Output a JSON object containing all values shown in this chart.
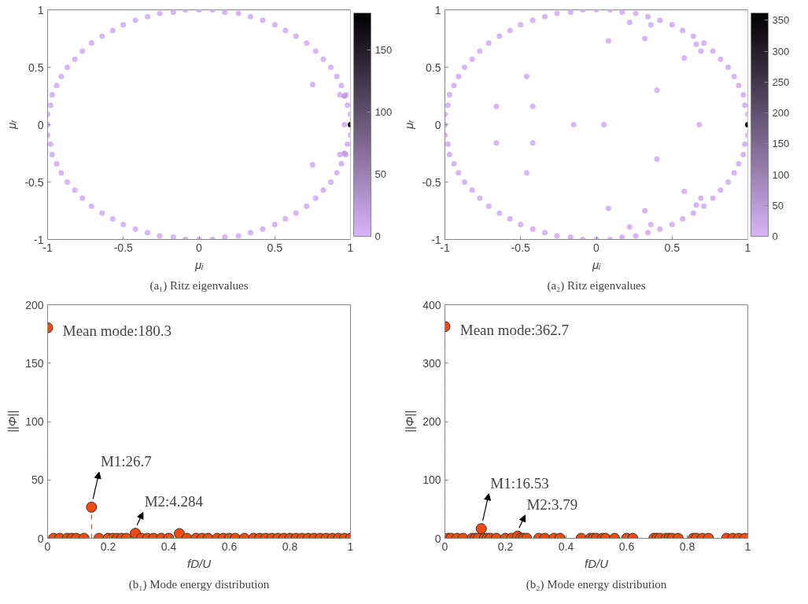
{
  "chart_data": [
    {
      "type": "scatter",
      "title": "(a₁) Ritz eigenvalues",
      "xlabel": "μᵢ",
      "ylabel": "μᵣ",
      "xlim": [
        -1,
        1
      ],
      "ylim": [
        -1,
        1
      ],
      "xticks": [
        -1,
        -0.5,
        0,
        0.5,
        1
      ],
      "yticks": [
        -1,
        -0.5,
        0,
        0.5,
        1
      ],
      "marker": "circle",
      "clim": [
        0,
        180
      ],
      "cticks": [
        0,
        50,
        100,
        150
      ],
      "x": [
        1.0,
        0.98,
        0.97,
        0.94,
        0.91,
        0.87,
        0.82,
        0.77,
        0.71,
        0.64,
        0.57,
        0.5,
        0.42,
        0.34,
        0.26,
        0.17,
        0.09,
        0,
        -0.09,
        -0.17,
        -0.26,
        -0.34,
        -0.42,
        -0.5,
        -0.57,
        -0.64,
        -0.71,
        -0.77,
        -0.82,
        -0.87,
        -0.91,
        -0.94,
        -0.97,
        -0.98,
        -1.0,
        -1,
        -1.0,
        -0.98,
        -0.97,
        -0.94,
        -0.91,
        -0.87,
        -0.82,
        -0.77,
        -0.71,
        -0.64,
        -0.57,
        -0.5,
        -0.42,
        -0.34,
        -0.26,
        -0.17,
        -0.09,
        0,
        0.09,
        0.17,
        0.26,
        0.34,
        0.42,
        0.5,
        0.57,
        0.64,
        0.71,
        0.77,
        0.82,
        0.87,
        0.91,
        0.94,
        0.97,
        0.98,
        1.0,
        0.75,
        0.75,
        0.93,
        0.93,
        0.96,
        0.96,
        0.96,
        1
      ],
      "values": [
        0.09,
        0.17,
        0.26,
        0.34,
        0.42,
        0.5,
        0.57,
        0.64,
        0.71,
        0.77,
        0.82,
        0.87,
        0.91,
        0.94,
        0.97,
        0.98,
        1.0,
        1,
        1.0,
        0.98,
        0.97,
        0.94,
        0.91,
        0.87,
        0.82,
        0.77,
        0.71,
        0.64,
        0.57,
        0.5,
        0.42,
        0.34,
        0.26,
        0.17,
        0.09,
        0,
        -0.09,
        -0.17,
        -0.26,
        -0.34,
        -0.42,
        -0.5,
        -0.57,
        -0.64,
        -0.71,
        -0.77,
        -0.82,
        -0.87,
        -0.91,
        -0.94,
        -0.97,
        -0.98,
        -1.0,
        -1,
        -1.0,
        -0.98,
        -0.97,
        -0.94,
        -0.91,
        -0.87,
        -0.82,
        -0.77,
        -0.71,
        -0.64,
        -0.57,
        -0.5,
        -0.42,
        -0.34,
        -0.26,
        -0.17,
        -0.09,
        0.35,
        -0.35,
        0.26,
        -0.26,
        0.25,
        -0.25,
        0,
        0
      ],
      "cvalues": [
        0,
        0,
        0,
        0,
        0,
        0,
        0,
        0,
        0,
        0,
        0,
        0,
        0,
        0,
        0,
        0,
        0,
        0,
        0,
        0,
        0,
        0,
        0,
        0,
        0,
        0,
        0,
        0,
        0,
        0,
        0,
        0,
        0,
        0,
        0,
        0,
        0,
        0,
        0,
        0,
        0,
        0,
        0,
        0,
        0,
        0,
        0,
        0,
        0,
        0,
        0,
        0,
        0,
        0,
        0,
        0,
        0,
        0,
        0,
        0,
        0,
        0,
        0,
        0,
        0,
        0,
        0,
        0,
        0,
        0,
        0,
        0,
        0,
        0,
        0,
        20,
        20,
        0,
        180
      ]
    },
    {
      "type": "scatter",
      "title": "(a₂) Ritz eigenvalues",
      "xlabel": "μᵢ",
      "ylabel": "μᵣ",
      "xlim": [
        -1,
        1
      ],
      "ylim": [
        -1,
        1
      ],
      "xticks": [
        -1,
        -0.5,
        0,
        0.5,
        1
      ],
      "yticks": [
        -1,
        -0.5,
        0,
        0.5,
        1
      ],
      "marker": "circle",
      "clim": [
        0,
        362
      ],
      "cticks": [
        0,
        50,
        100,
        150,
        200,
        250,
        300,
        350
      ],
      "x": [
        1.0,
        0.98,
        0.97,
        0.94,
        0.91,
        0.87,
        0.82,
        0.77,
        0.71,
        0.64,
        0.57,
        0.5,
        0.42,
        0.34,
        0.26,
        0.17,
        0.09,
        0,
        -0.09,
        -0.17,
        -0.26,
        -0.34,
        -0.42,
        -0.5,
        -0.57,
        -0.64,
        -0.71,
        -0.77,
        -0.82,
        -0.87,
        -0.91,
        -0.94,
        -0.97,
        -0.98,
        -1.0,
        -1,
        -1.0,
        -0.98,
        -0.97,
        -0.94,
        -0.91,
        -0.87,
        -0.82,
        -0.77,
        -0.71,
        -0.64,
        -0.57,
        -0.5,
        -0.42,
        -0.34,
        -0.26,
        -0.17,
        -0.09,
        0,
        0.09,
        0.17,
        0.26,
        0.34,
        0.42,
        0.5,
        0.57,
        0.64,
        0.71,
        0.77,
        0.82,
        0.87,
        0.91,
        0.94,
        0.97,
        0.98,
        1.0,
        -0.46,
        -0.46,
        -0.66,
        -0.66,
        -0.42,
        -0.42,
        -0.15,
        0.05,
        0.08,
        0.08,
        0.32,
        0.32,
        0.22,
        0.22,
        0.36,
        0.36,
        0.4,
        0.4,
        0.58,
        0.58,
        0.66,
        0.66,
        0.69,
        0.69,
        0.68,
        1
      ],
      "values": [
        0.09,
        0.17,
        0.26,
        0.34,
        0.42,
        0.5,
        0.57,
        0.64,
        0.71,
        0.77,
        0.82,
        0.87,
        0.91,
        0.94,
        0.97,
        0.98,
        1.0,
        1,
        1.0,
        0.98,
        0.97,
        0.94,
        0.91,
        0.87,
        0.82,
        0.77,
        0.71,
        0.64,
        0.57,
        0.5,
        0.42,
        0.34,
        0.26,
        0.17,
        0.09,
        0,
        -0.09,
        -0.17,
        -0.26,
        -0.34,
        -0.42,
        -0.5,
        -0.57,
        -0.64,
        -0.71,
        -0.77,
        -0.82,
        -0.87,
        -0.91,
        -0.94,
        -0.97,
        -0.98,
        -1.0,
        -1,
        -1.0,
        -0.98,
        -0.97,
        -0.94,
        -0.91,
        -0.87,
        -0.82,
        -0.77,
        -0.71,
        -0.64,
        -0.57,
        -0.5,
        -0.42,
        -0.34,
        -0.26,
        -0.17,
        -0.09,
        0.42,
        -0.42,
        0.16,
        -0.16,
        0.16,
        -0.16,
        0,
        0,
        0.73,
        -0.73,
        0.75,
        -0.75,
        0.89,
        -0.89,
        0.87,
        -0.87,
        0.3,
        -0.3,
        0.58,
        -0.58,
        0.7,
        -0.7,
        0.64,
        -0.64,
        0,
        0
      ],
      "cvalues": [
        0,
        0,
        0,
        0,
        0,
        0,
        0,
        0,
        0,
        0,
        0,
        0,
        0,
        0,
        0,
        0,
        0,
        0,
        0,
        0,
        0,
        0,
        0,
        0,
        0,
        0,
        0,
        0,
        0,
        0,
        0,
        0,
        0,
        0,
        0,
        0,
        0,
        0,
        0,
        0,
        0,
        0,
        0,
        0,
        0,
        0,
        0,
        0,
        0,
        0,
        0,
        0,
        0,
        0,
        0,
        0,
        0,
        0,
        0,
        0,
        0,
        0,
        0,
        0,
        0,
        0,
        0,
        0,
        0,
        0,
        0,
        0,
        0,
        0,
        0,
        0,
        0,
        0,
        0,
        0,
        0,
        0,
        0,
        0,
        0,
        0,
        0,
        0,
        0,
        0,
        0,
        0,
        0,
        0,
        0,
        0,
        360
      ]
    },
    {
      "type": "lollipop",
      "title": "(b₁) Mode energy distribution",
      "xlabel": "fD/U",
      "ylabel": "||Φ||",
      "xlim": [
        0,
        1
      ],
      "ylim": [
        0,
        200
      ],
      "xticks": [
        0,
        0.2,
        0.4,
        0.6,
        0.8,
        1
      ],
      "yticks": [
        0,
        50,
        100,
        150,
        200
      ],
      "marker": "circle",
      "line_style": "dashed",
      "color": "#f04a12",
      "x": [
        0,
        0.02,
        0.04,
        0.065,
        0.08,
        0.095,
        0.12,
        0.145,
        0.17,
        0.2,
        0.215,
        0.23,
        0.245,
        0.26,
        0.29,
        0.31,
        0.33,
        0.35,
        0.375,
        0.4,
        0.435,
        0.46,
        0.49,
        0.51,
        0.53,
        0.56,
        0.58,
        0.6,
        0.62,
        0.65,
        0.68,
        0.7,
        0.72,
        0.74,
        0.76,
        0.78,
        0.8,
        0.82,
        0.84,
        0.86,
        0.88,
        0.9,
        0.92,
        0.94,
        0.96,
        0.98,
        1
      ],
      "values": [
        180.3,
        0,
        0,
        0,
        0,
        0,
        0,
        26.7,
        0,
        0,
        0,
        0,
        0,
        0,
        4.284,
        0,
        0,
        0,
        0,
        0,
        4,
        0,
        0,
        0,
        0,
        0,
        0,
        0,
        0,
        0,
        0,
        0,
        0,
        0,
        0,
        0,
        0,
        0,
        0,
        0,
        0,
        0,
        0,
        0,
        0,
        0,
        0
      ],
      "annotations": [
        {
          "text": "Mean mode:180.3",
          "x": 0,
          "y": 180.3
        },
        {
          "text": "M1:26.7",
          "x": 0.145,
          "y": 26.7
        },
        {
          "text": "M2:4.284",
          "x": 0.29,
          "y": 4.284
        }
      ]
    },
    {
      "type": "lollipop",
      "title": "(b₂) Mode energy distribution",
      "xlabel": "fD/U",
      "ylabel": "||Φ||",
      "xlim": [
        0,
        1
      ],
      "ylim": [
        0,
        400
      ],
      "xticks": [
        0,
        0.2,
        0.4,
        0.6,
        0.8,
        1
      ],
      "yticks": [
        0,
        100,
        200,
        300,
        400
      ],
      "marker": "circle",
      "line_style": "dashed",
      "color": "#f04a12",
      "x": [
        0,
        0.01,
        0.02,
        0.04,
        0.06,
        0.09,
        0.1,
        0.11,
        0.12,
        0.13,
        0.14,
        0.15,
        0.17,
        0.2,
        0.22,
        0.24,
        0.25,
        0.26,
        0.27,
        0.31,
        0.33,
        0.36,
        0.38,
        0.45,
        0.48,
        0.49,
        0.5,
        0.52,
        0.53,
        0.56,
        0.6,
        0.62,
        0.69,
        0.7,
        0.71,
        0.73,
        0.74,
        0.75,
        0.77,
        0.82,
        0.83,
        0.85,
        0.87,
        0.93,
        0.95,
        0.97,
        0.99
      ],
      "values": [
        362.7,
        0,
        0,
        0,
        0,
        0,
        0,
        0,
        16.53,
        0,
        0,
        0,
        0,
        0,
        0,
        3.79,
        0,
        0,
        0,
        0,
        0,
        0,
        0,
        0,
        0,
        0,
        0,
        0,
        0,
        0,
        0,
        0,
        0,
        0,
        0,
        0,
        0,
        0,
        0,
        0,
        0,
        0,
        0,
        0,
        0,
        0,
        0
      ],
      "annotations": [
        {
          "text": "Mean mode:362.7",
          "x": 0,
          "y": 362.7
        },
        {
          "text": "M1:16.53",
          "x": 0.12,
          "y": 16.53
        },
        {
          "text": "M2:3.79",
          "x": 0.24,
          "y": 3.79
        }
      ]
    }
  ]
}
